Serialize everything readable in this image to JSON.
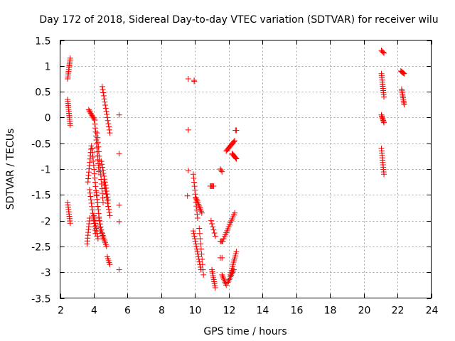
{
  "chart_data": {
    "type": "scatter",
    "title": "Day 172 of 2018, Sidereal Day-to-day VTEC variation (SDTVAR) for receiver wilu",
    "xlabel": "GPS time / hours",
    "ylabel": "SDTVAR / TECUs",
    "xlim": [
      2,
      24
    ],
    "ylim": [
      -3.5,
      1.5
    ],
    "xticks": [
      2,
      4,
      6,
      8,
      10,
      12,
      14,
      16,
      18,
      20,
      22,
      24
    ],
    "xtick_labels": [
      "2",
      "4",
      "6",
      "8",
      "10",
      "12",
      "14",
      "16",
      "18",
      "20",
      "22",
      "24"
    ],
    "yticks": [
      -3.5,
      -3,
      -2.5,
      -2,
      -1.5,
      -1,
      -0.5,
      0,
      0.5,
      1,
      1.5
    ],
    "ytick_labels": [
      "-3.5",
      "-3",
      "-2.5",
      "-2",
      "-1.5",
      "-1",
      "-0.5",
      "0",
      "0.5",
      "1",
      "1.5"
    ],
    "grid": true,
    "marker": "+",
    "color": "#ff0000",
    "series": [
      {
        "name": "SDTVAR",
        "segments": [
          {
            "x0": 2.45,
            "x1": 2.6,
            "y0": 0.75,
            "y1": 1.15,
            "n": 12
          },
          {
            "x0": 2.45,
            "x1": 2.6,
            "y0": 0.35,
            "y1": -0.15,
            "n": 14
          },
          {
            "x0": 2.45,
            "x1": 2.6,
            "y0": -1.65,
            "y1": -2.05,
            "n": 10
          },
          {
            "x0": 3.6,
            "x1": 3.75,
            "y0": -2.45,
            "y1": -1.95,
            "n": 10
          },
          {
            "x0": 3.65,
            "x1": 3.85,
            "y0": -1.25,
            "y1": -0.55,
            "n": 12
          },
          {
            "x0": 3.7,
            "x1": 4.05,
            "y0": 0.15,
            "y1": -0.05,
            "n": 10
          },
          {
            "x0": 3.75,
            "x1": 4.1,
            "y0": -1.4,
            "y1": -2.25,
            "n": 14
          },
          {
            "x0": 3.9,
            "x1": 4.15,
            "y0": -0.6,
            "y1": -1.5,
            "n": 12
          },
          {
            "x0": 4.0,
            "x1": 4.25,
            "y0": -1.9,
            "y1": -2.35,
            "n": 10
          },
          {
            "x0": 4.05,
            "x1": 4.3,
            "y0": -0.05,
            "y1": -1.05,
            "n": 14
          },
          {
            "x0": 4.15,
            "x1": 4.4,
            "y0": -1.45,
            "y1": -2.2,
            "n": 12
          },
          {
            "x0": 4.2,
            "x1": 4.55,
            "y0": -0.3,
            "y1": -1.65,
            "n": 16
          },
          {
            "x0": 4.3,
            "x1": 4.55,
            "y0": -1.95,
            "y1": -2.35,
            "n": 8
          },
          {
            "x0": 4.45,
            "x1": 4.85,
            "y0": -0.85,
            "y1": -1.6,
            "n": 14
          },
          {
            "x0": 4.5,
            "x1": 4.75,
            "y0": -2.25,
            "y1": -2.5,
            "n": 8
          },
          {
            "x0": 4.5,
            "x1": 4.95,
            "y0": 0.6,
            "y1": -0.3,
            "n": 16
          },
          {
            "x0": 4.6,
            "x1": 4.95,
            "y0": -1.25,
            "y1": -1.9,
            "n": 12
          },
          {
            "x0": 4.8,
            "x1": 4.95,
            "y0": -2.7,
            "y1": -2.85,
            "n": 5
          },
          {
            "x0": 5.5,
            "x1": 5.5,
            "y0": 0.05,
            "y1": 0.05,
            "n": 1
          },
          {
            "x0": 5.5,
            "x1": 5.5,
            "y0": -0.7,
            "y1": -0.7,
            "n": 1
          },
          {
            "x0": 5.5,
            "x1": 5.5,
            "y0": -1.7,
            "y1": -1.7,
            "n": 1
          },
          {
            "x0": 5.5,
            "x1": 5.5,
            "y0": -2.02,
            "y1": -2.02,
            "n": 1
          },
          {
            "x0": 5.5,
            "x1": 5.5,
            "y0": -2.95,
            "y1": -2.95,
            "n": 1
          },
          {
            "x0": 9.6,
            "x1": 9.6,
            "y0": 0.75,
            "y1": 0.75,
            "n": 1
          },
          {
            "x0": 9.95,
            "x1": 9.95,
            "y0": 0.7,
            "y1": 0.72,
            "n": 2
          },
          {
            "x0": 9.6,
            "x1": 9.6,
            "y0": -0.24,
            "y1": -0.24,
            "n": 1
          },
          {
            "x0": 9.6,
            "x1": 9.6,
            "y0": -1.03,
            "y1": -1.03,
            "n": 1
          },
          {
            "x0": 9.55,
            "x1": 9.55,
            "y0": -1.52,
            "y1": -1.52,
            "n": 1
          },
          {
            "x0": 9.9,
            "x1": 10.15,
            "y0": -1.1,
            "y1": -1.95,
            "n": 12
          },
          {
            "x0": 10.05,
            "x1": 10.4,
            "y0": -1.55,
            "y1": -1.85,
            "n": 10
          },
          {
            "x0": 9.9,
            "x1": 10.35,
            "y0": -2.2,
            "y1": -2.95,
            "n": 16
          },
          {
            "x0": 10.25,
            "x1": 10.5,
            "y0": -2.15,
            "y1": -3.05,
            "n": 10
          },
          {
            "x0": 10.9,
            "x1": 11.1,
            "y0": -1.33,
            "y1": -1.33,
            "n": 5
          },
          {
            "x0": 10.95,
            "x1": 11.2,
            "y0": -2.0,
            "y1": -2.3,
            "n": 6
          },
          {
            "x0": 11.0,
            "x1": 11.2,
            "y0": -2.95,
            "y1": -3.3,
            "n": 10
          },
          {
            "x0": 11.5,
            "x1": 11.6,
            "y0": -1.0,
            "y1": -1.05,
            "n": 3
          },
          {
            "x0": 11.5,
            "x1": 11.65,
            "y0": -2.4,
            "y1": -2.4,
            "n": 4
          },
          {
            "x0": 11.5,
            "x1": 11.6,
            "y0": -2.72,
            "y1": -2.72,
            "n": 2
          },
          {
            "x0": 11.6,
            "x1": 11.85,
            "y0": -3.05,
            "y1": -3.25,
            "n": 8
          },
          {
            "x0": 11.7,
            "x1": 12.35,
            "y0": -2.35,
            "y1": -1.85,
            "n": 14
          },
          {
            "x0": 11.85,
            "x1": 12.35,
            "y0": -0.65,
            "y1": -0.45,
            "n": 12
          },
          {
            "x0": 11.95,
            "x1": 12.3,
            "y0": -3.2,
            "y1": -2.95,
            "n": 10
          },
          {
            "x0": 12.1,
            "x1": 12.45,
            "y0": -3.05,
            "y1": -2.6,
            "n": 12
          },
          {
            "x0": 12.2,
            "x1": 12.45,
            "y0": -0.7,
            "y1": -0.8,
            "n": 8
          },
          {
            "x0": 12.4,
            "x1": 12.45,
            "y0": -0.25,
            "y1": -0.25,
            "n": 2
          },
          {
            "x0": 21.05,
            "x1": 21.2,
            "y0": 1.3,
            "y1": 1.25,
            "n": 4
          },
          {
            "x0": 21.05,
            "x1": 21.2,
            "y0": 0.85,
            "y1": 0.4,
            "n": 12
          },
          {
            "x0": 21.05,
            "x1": 21.2,
            "y0": 0.05,
            "y1": -0.1,
            "n": 8
          },
          {
            "x0": 21.05,
            "x1": 21.2,
            "y0": -0.6,
            "y1": -1.1,
            "n": 12
          },
          {
            "x0": 22.2,
            "x1": 22.4,
            "y0": 0.9,
            "y1": 0.85,
            "n": 6
          },
          {
            "x0": 22.25,
            "x1": 22.4,
            "y0": 0.55,
            "y1": 0.25,
            "n": 10
          }
        ]
      }
    ]
  }
}
